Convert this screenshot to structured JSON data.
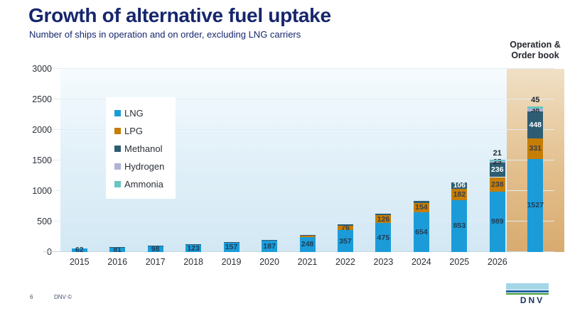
{
  "slide": {
    "title": "Growth of alternative fuel uptake",
    "subtitle": "Number of ships in operation and on order, excluding LNG carriers",
    "page_number": "6",
    "copyright": "DNV ©",
    "logo_text": "DNV",
    "logo_colors": {
      "sky": "#a3d7e8",
      "blue": "#1f63a6",
      "green": "#3f9c35",
      "text": "#1a3263"
    },
    "title_color": "#16266d"
  },
  "chart_data": {
    "type": "bar",
    "stacked": true,
    "title": "Growth of alternative fuel uptake",
    "subtitle": "Number of ships in operation and on order, excluding LNG carriers",
    "categories": [
      "2015",
      "2016",
      "2017",
      "2018",
      "2019",
      "2020",
      "2021",
      "2022",
      "2023",
      "2024",
      "2025",
      "2026",
      "Operation & Order book"
    ],
    "highlight_index": 12,
    "highlight_header": [
      "Operation &",
      "Order book"
    ],
    "highlight_colors": [
      "#f0e0c6",
      "#d8ab6f"
    ],
    "ylim": [
      0,
      3000
    ],
    "yticks": [
      0,
      500,
      1000,
      1500,
      2000,
      2500,
      3000
    ],
    "grid": true,
    "legend_position": "upper-left-inside",
    "series": [
      {
        "name": "LNG",
        "color": "#1b9cd9",
        "label_color": "#1f3c55",
        "values": [
          62,
          81,
          98,
          123,
          157,
          187,
          248,
          357,
          475,
          654,
          853,
          989,
          1527
        ],
        "labels": [
          "62",
          "81",
          "98",
          "123",
          "157",
          "187",
          "248",
          "357",
          "475",
          "654",
          "853",
          "989",
          "1527"
        ]
      },
      {
        "name": "LPG",
        "color": "#c57d05",
        "label_color": "#3a3f46",
        "values": [
          0,
          0,
          0,
          0,
          0,
          0,
          15,
          76,
          126,
          154,
          182,
          238,
          331
        ],
        "labels": [
          "",
          "",
          "",
          "",
          "",
          "",
          "",
          "76",
          "126",
          "154",
          "182",
          "238",
          "331"
        ]
      },
      {
        "name": "Methanol",
        "color": "#2e5d73",
        "label_color": "#ffffff",
        "values": [
          0,
          2,
          4,
          6,
          10,
          14,
          18,
          24,
          28,
          35,
          106,
          236,
          448
        ],
        "labels": [
          "",
          "",
          "",
          "",
          "",
          "",
          "",
          "",
          "",
          "",
          "106",
          "236",
          "448"
        ]
      },
      {
        "name": "Hydrogen",
        "color": "#afb3d4",
        "label_color": "#262b33",
        "values": [
          0,
          0,
          0,
          0,
          0,
          0,
          0,
          0,
          0,
          0,
          0,
          25,
          38
        ],
        "labels": [
          "",
          "",
          "",
          "",
          "",
          "",
          "",
          "",
          "",
          "",
          "",
          "25",
          "38"
        ]
      },
      {
        "name": "Ammonia",
        "color": "#67c5c3",
        "label_color": "#23282e",
        "label_position": "above",
        "values": [
          0,
          0,
          0,
          0,
          0,
          0,
          0,
          0,
          0,
          0,
          0,
          21,
          45
        ],
        "labels": [
          "",
          "",
          "",
          "",
          "",
          "",
          "",
          "",
          "",
          "",
          "",
          "21",
          "45"
        ]
      }
    ]
  }
}
